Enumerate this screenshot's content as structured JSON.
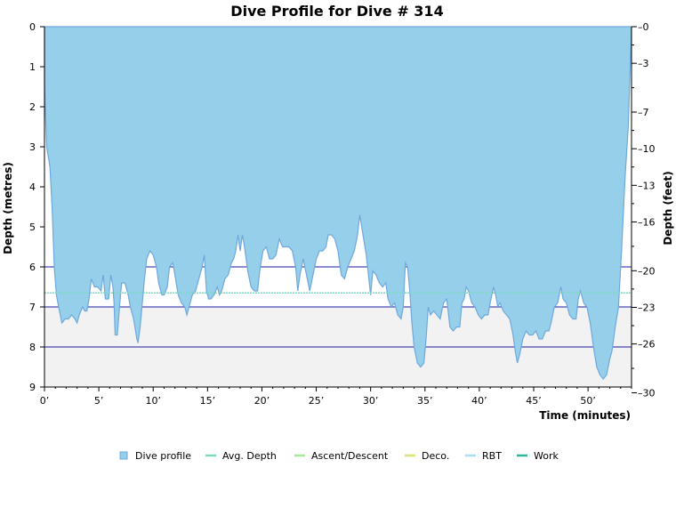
{
  "chart_data": {
    "type": "area",
    "title": "Dive Profile for Dive # 314",
    "xlabel": "Time (minutes)",
    "ylabel_left": "Depth (metres)",
    "ylabel_right": "Depth (feet)",
    "xlim": [
      0,
      54
    ],
    "ylim": [
      0,
      9
    ],
    "y_inverted": true,
    "x_ticks": [
      {
        "value": 0,
        "label": "0’"
      },
      {
        "value": 5,
        "label": "5’"
      },
      {
        "value": 10,
        "label": "10’"
      },
      {
        "value": 15,
        "label": "15’"
      },
      {
        "value": 20,
        "label": "20’"
      },
      {
        "value": 25,
        "label": "25’"
      },
      {
        "value": 30,
        "label": "30’"
      },
      {
        "value": 35,
        "label": "35’"
      },
      {
        "value": 40,
        "label": "40’"
      },
      {
        "value": 45,
        "label": "45’"
      },
      {
        "value": 50,
        "label": "50’"
      }
    ],
    "y_ticks_left": [
      {
        "value": 0,
        "label": "0"
      },
      {
        "value": 1,
        "label": "1"
      },
      {
        "value": 2,
        "label": "2"
      },
      {
        "value": 3,
        "label": "3"
      },
      {
        "value": 4,
        "label": "4"
      },
      {
        "value": 5,
        "label": "5"
      },
      {
        "value": 6,
        "label": "6"
      },
      {
        "value": 7,
        "label": "7"
      },
      {
        "value": 8,
        "label": "8"
      },
      {
        "value": 9,
        "label": "9"
      }
    ],
    "y_ticks_right_feet": [
      {
        "value": 0,
        "label": "0"
      },
      {
        "value": 3,
        "label": "3"
      },
      {
        "value": 7,
        "label": "7"
      },
      {
        "value": 10,
        "label": "10"
      },
      {
        "value": 13,
        "label": "13"
      },
      {
        "value": 16,
        "label": "16"
      },
      {
        "value": 20,
        "label": "20"
      },
      {
        "value": 23,
        "label": "23"
      },
      {
        "value": 26,
        "label": "26"
      },
      {
        "value": 30,
        "label": "30"
      }
    ],
    "reference_lines_depth": [
      6,
      7,
      8
    ],
    "shaded_band_depth": [
      7,
      9
    ],
    "avg_depth": 6.65,
    "series": [
      {
        "name": "Dive profile",
        "color": "#96cfea",
        "points": [
          [
            0,
            1.4
          ],
          [
            0.2,
            3.0
          ],
          [
            0.5,
            3.5
          ],
          [
            0.7,
            4.5
          ],
          [
            0.9,
            6.0
          ],
          [
            1.1,
            6.7
          ],
          [
            1.3,
            7.0
          ],
          [
            1.6,
            7.4
          ],
          [
            1.9,
            7.3
          ],
          [
            2.2,
            7.3
          ],
          [
            2.5,
            7.2
          ],
          [
            2.8,
            7.3
          ],
          [
            3.0,
            7.4
          ],
          [
            3.2,
            7.2
          ],
          [
            3.5,
            7.0
          ],
          [
            3.7,
            7.1
          ],
          [
            3.9,
            7.1
          ],
          [
            4.1,
            6.8
          ],
          [
            4.3,
            6.3
          ],
          [
            4.6,
            6.5
          ],
          [
            4.9,
            6.5
          ],
          [
            5.2,
            6.6
          ],
          [
            5.4,
            6.2
          ],
          [
            5.6,
            6.8
          ],
          [
            5.9,
            6.8
          ],
          [
            6.1,
            6.2
          ],
          [
            6.3,
            6.5
          ],
          [
            6.4,
            6.9
          ],
          [
            6.5,
            7.7
          ],
          [
            6.7,
            7.7
          ],
          [
            6.9,
            7.0
          ],
          [
            7.1,
            6.4
          ],
          [
            7.4,
            6.4
          ],
          [
            7.7,
            6.7
          ],
          [
            7.9,
            7.0
          ],
          [
            8.2,
            7.3
          ],
          [
            8.5,
            7.8
          ],
          [
            8.6,
            7.9
          ],
          [
            8.8,
            7.5
          ],
          [
            9.0,
            6.9
          ],
          [
            9.2,
            6.3
          ],
          [
            9.4,
            5.8
          ],
          [
            9.7,
            5.6
          ],
          [
            10.0,
            5.7
          ],
          [
            10.3,
            6.0
          ],
          [
            10.5,
            6.4
          ],
          [
            10.8,
            6.7
          ],
          [
            11.0,
            6.7
          ],
          [
            11.3,
            6.5
          ],
          [
            11.5,
            6.0
          ],
          [
            11.8,
            5.9
          ],
          [
            12.0,
            6.2
          ],
          [
            12.3,
            6.7
          ],
          [
            12.6,
            6.9
          ],
          [
            12.9,
            7.0
          ],
          [
            13.1,
            7.2
          ],
          [
            13.3,
            7.0
          ],
          [
            13.6,
            6.7
          ],
          [
            13.9,
            6.6
          ],
          [
            14.2,
            6.3
          ],
          [
            14.5,
            6.0
          ],
          [
            14.7,
            5.7
          ],
          [
            14.9,
            6.6
          ],
          [
            15.1,
            6.8
          ],
          [
            15.3,
            6.8
          ],
          [
            15.6,
            6.7
          ],
          [
            15.9,
            6.5
          ],
          [
            16.1,
            6.7
          ],
          [
            16.3,
            6.6
          ],
          [
            16.6,
            6.3
          ],
          [
            16.9,
            6.2
          ],
          [
            17.2,
            5.9
          ],
          [
            17.4,
            5.8
          ],
          [
            17.6,
            5.6
          ],
          [
            17.8,
            5.2
          ],
          [
            18.0,
            5.6
          ],
          [
            18.2,
            5.2
          ],
          [
            18.4,
            5.5
          ],
          [
            18.7,
            6.1
          ],
          [
            19.0,
            6.5
          ],
          [
            19.3,
            6.6
          ],
          [
            19.6,
            6.6
          ],
          [
            19.8,
            6.1
          ],
          [
            20.1,
            5.6
          ],
          [
            20.4,
            5.5
          ],
          [
            20.7,
            5.8
          ],
          [
            21.0,
            5.8
          ],
          [
            21.3,
            5.7
          ],
          [
            21.6,
            5.3
          ],
          [
            21.9,
            5.5
          ],
          [
            22.2,
            5.5
          ],
          [
            22.5,
            5.5
          ],
          [
            22.8,
            5.6
          ],
          [
            23.1,
            6.0
          ],
          [
            23.3,
            6.6
          ],
          [
            23.5,
            6.2
          ],
          [
            23.8,
            5.8
          ],
          [
            24.1,
            6.2
          ],
          [
            24.4,
            6.6
          ],
          [
            24.7,
            6.2
          ],
          [
            25.0,
            5.8
          ],
          [
            25.3,
            5.6
          ],
          [
            25.6,
            5.6
          ],
          [
            25.9,
            5.5
          ],
          [
            26.1,
            5.2
          ],
          [
            26.4,
            5.2
          ],
          [
            26.7,
            5.3
          ],
          [
            27.0,
            5.6
          ],
          [
            27.3,
            6.2
          ],
          [
            27.6,
            6.3
          ],
          [
            27.9,
            6.0
          ],
          [
            28.2,
            5.8
          ],
          [
            28.5,
            5.6
          ],
          [
            28.8,
            5.2
          ],
          [
            29.0,
            4.7
          ],
          [
            29.3,
            5.2
          ],
          [
            29.6,
            5.7
          ],
          [
            29.8,
            6.2
          ],
          [
            30.0,
            6.7
          ],
          [
            30.2,
            6.1
          ],
          [
            30.5,
            6.2
          ],
          [
            30.8,
            6.4
          ],
          [
            31.1,
            6.5
          ],
          [
            31.4,
            6.4
          ],
          [
            31.6,
            6.8
          ],
          [
            31.9,
            7.0
          ],
          [
            32.2,
            6.9
          ],
          [
            32.5,
            7.2
          ],
          [
            32.8,
            7.3
          ],
          [
            33.0,
            7.0
          ],
          [
            33.2,
            5.9
          ],
          [
            33.4,
            6.0
          ],
          [
            33.6,
            6.6
          ],
          [
            33.8,
            7.4
          ],
          [
            34.0,
            8.0
          ],
          [
            34.3,
            8.4
          ],
          [
            34.6,
            8.5
          ],
          [
            34.9,
            8.4
          ],
          [
            35.1,
            7.8
          ],
          [
            35.3,
            7.0
          ],
          [
            35.5,
            7.2
          ],
          [
            35.8,
            7.1
          ],
          [
            36.1,
            7.2
          ],
          [
            36.4,
            7.3
          ],
          [
            36.7,
            6.9
          ],
          [
            37.0,
            6.8
          ],
          [
            37.3,
            7.5
          ],
          [
            37.6,
            7.6
          ],
          [
            37.9,
            7.5
          ],
          [
            38.2,
            7.5
          ],
          [
            38.4,
            6.9
          ],
          [
            38.6,
            6.8
          ],
          [
            38.8,
            6.5
          ],
          [
            39.0,
            6.6
          ],
          [
            39.3,
            6.9
          ],
          [
            39.6,
            7.0
          ],
          [
            39.9,
            7.2
          ],
          [
            40.2,
            7.3
          ],
          [
            40.5,
            7.2
          ],
          [
            40.8,
            7.2
          ],
          [
            41.0,
            6.9
          ],
          [
            41.3,
            6.5
          ],
          [
            41.5,
            6.7
          ],
          [
            41.7,
            7.0
          ],
          [
            41.9,
            6.9
          ],
          [
            42.2,
            7.1
          ],
          [
            42.5,
            7.2
          ],
          [
            42.8,
            7.3
          ],
          [
            43.1,
            7.7
          ],
          [
            43.3,
            8.1
          ],
          [
            43.5,
            8.4
          ],
          [
            43.7,
            8.2
          ],
          [
            44.0,
            7.8
          ],
          [
            44.3,
            7.6
          ],
          [
            44.6,
            7.7
          ],
          [
            44.9,
            7.7
          ],
          [
            45.2,
            7.6
          ],
          [
            45.5,
            7.8
          ],
          [
            45.8,
            7.8
          ],
          [
            46.1,
            7.6
          ],
          [
            46.4,
            7.6
          ],
          [
            46.6,
            7.4
          ],
          [
            46.9,
            7.0
          ],
          [
            47.2,
            6.9
          ],
          [
            47.5,
            6.5
          ],
          [
            47.7,
            6.8
          ],
          [
            48.0,
            6.9
          ],
          [
            48.3,
            7.2
          ],
          [
            48.6,
            7.3
          ],
          [
            48.9,
            7.3
          ],
          [
            49.1,
            6.8
          ],
          [
            49.3,
            6.6
          ],
          [
            49.6,
            6.9
          ],
          [
            49.9,
            7.0
          ],
          [
            50.2,
            7.4
          ],
          [
            50.5,
            8.0
          ],
          [
            50.8,
            8.5
          ],
          [
            51.1,
            8.7
          ],
          [
            51.4,
            8.8
          ],
          [
            51.7,
            8.7
          ],
          [
            52.0,
            8.3
          ],
          [
            52.2,
            8.1
          ],
          [
            52.5,
            7.5
          ],
          [
            52.8,
            7.0
          ],
          [
            53.1,
            5.5
          ],
          [
            53.4,
            3.8
          ],
          [
            53.7,
            2.5
          ],
          [
            54,
            0
          ]
        ]
      },
      {
        "name": "Avg. Depth",
        "color": "#7ed8c3"
      },
      {
        "name": "Ascent/Descent",
        "color": "#a7e89a"
      },
      {
        "name": "Deco.",
        "color": "#dde27a"
      },
      {
        "name": "RBT",
        "color": "#a9dff0"
      },
      {
        "name": "Work",
        "color": "#2fb59a"
      }
    ],
    "grid": false,
    "legend_placement": "bottom-center"
  }
}
